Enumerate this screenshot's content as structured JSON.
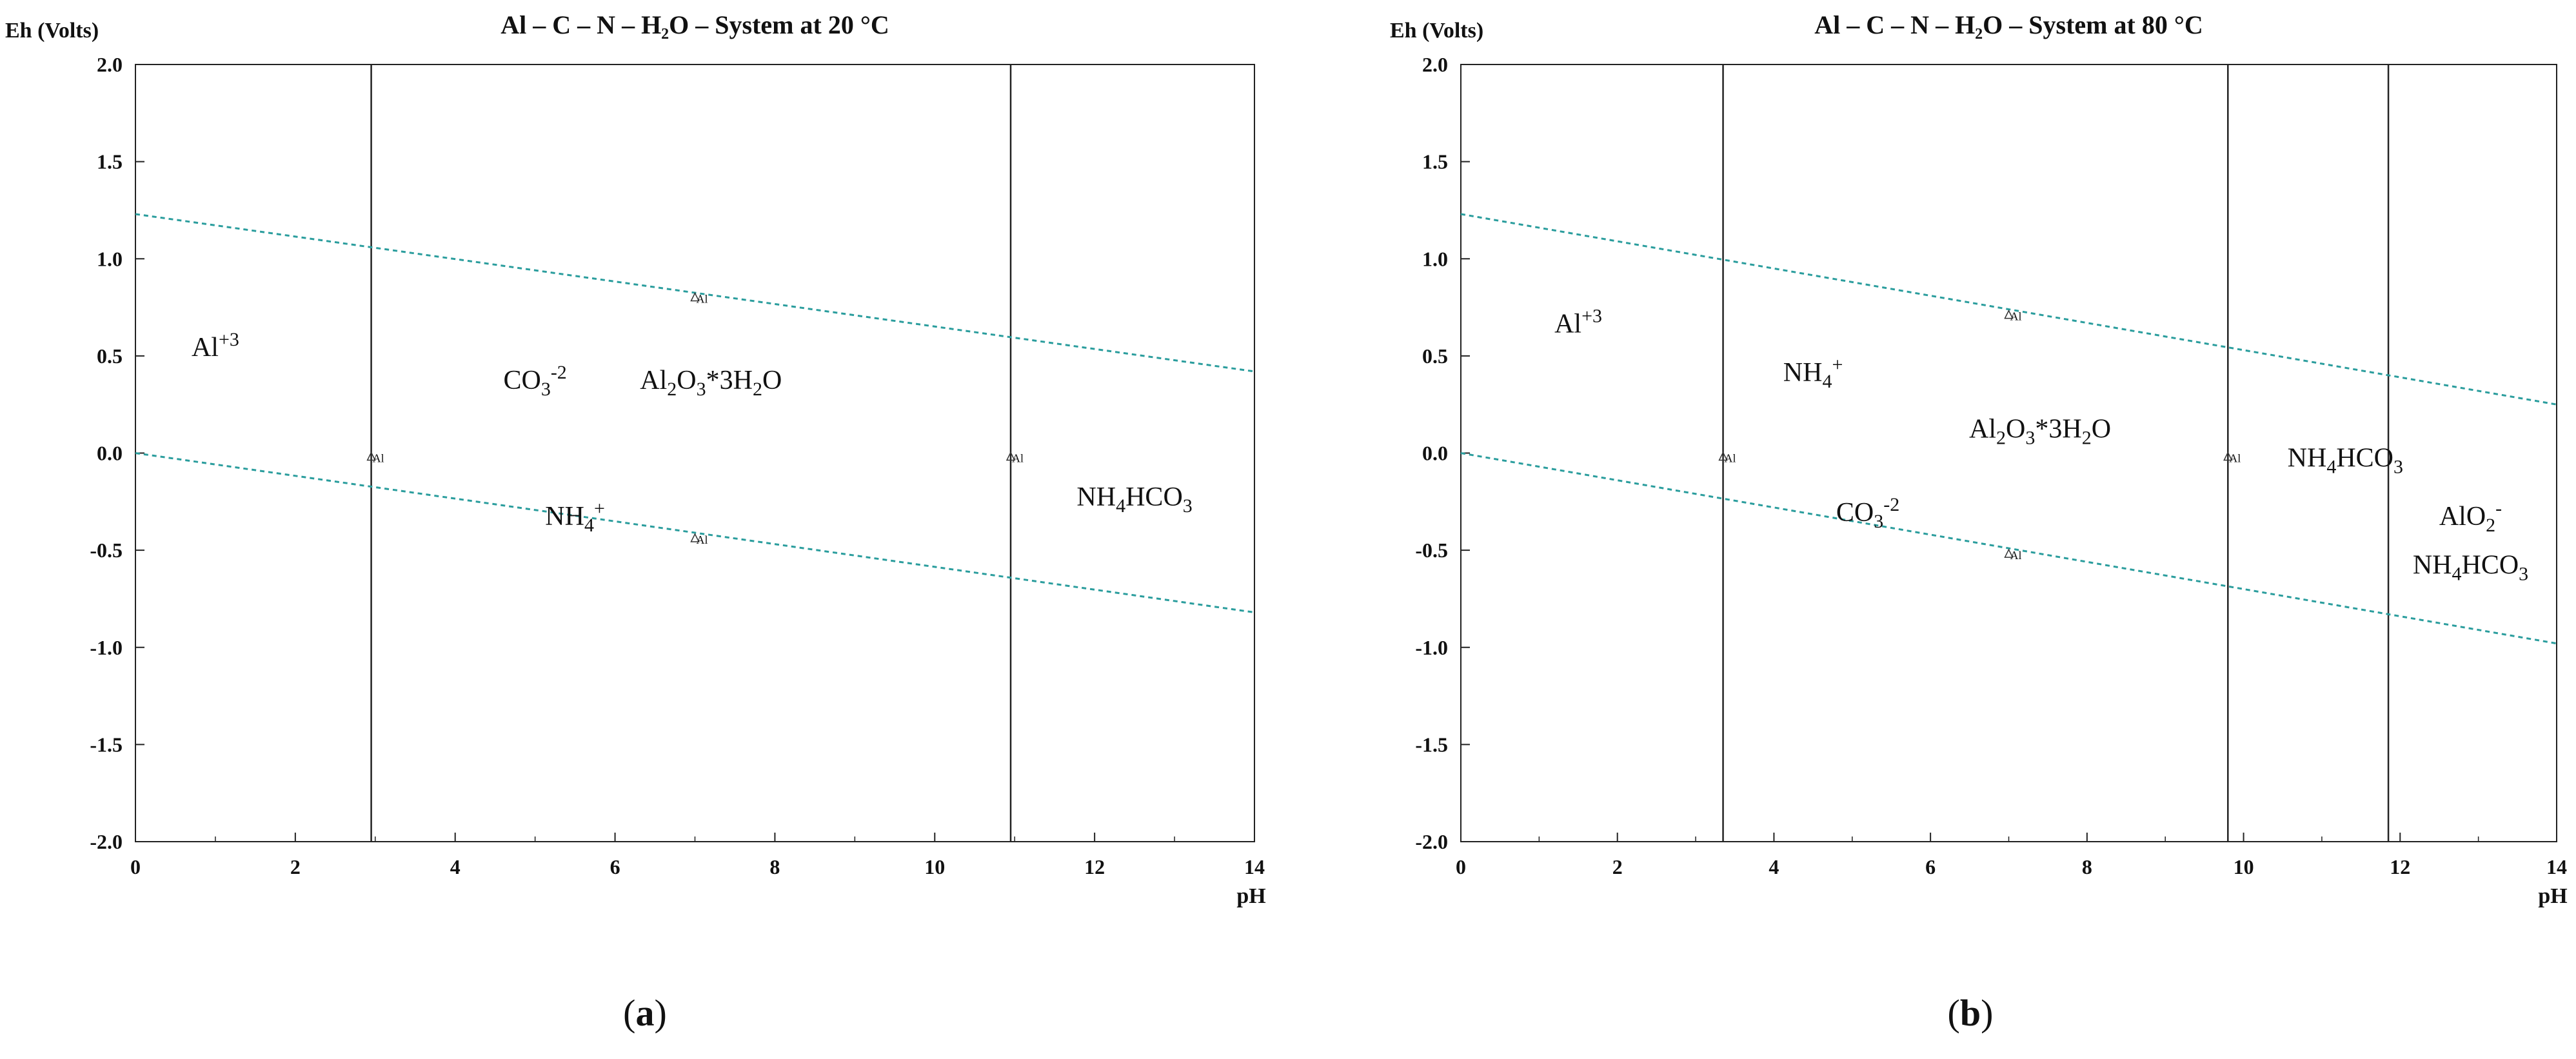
{
  "chart_data": [
    {
      "type": "line",
      "panel_label": "a",
      "title": "Al – C – N – H₂O – System at 20 °C",
      "ylabel": "Eh (Volts)",
      "xlabel": "pH",
      "xlim": [
        0,
        14
      ],
      "ylim": [
        -2.0,
        2.0
      ],
      "xticks": [
        0,
        2,
        4,
        6,
        8,
        10,
        12,
        14
      ],
      "yticks": [
        2.0,
        1.5,
        1.0,
        0.5,
        0.0,
        -0.5,
        -1.0,
        -1.5,
        -2.0
      ],
      "ytick_labels": [
        "2.0",
        "1.5",
        "1.0",
        "0.5",
        "0.0",
        "-0.5",
        "-1.0",
        "-1.5",
        "-2.0"
      ],
      "vertical_boundaries": [
        2.95,
        10.95
      ],
      "water_lines": [
        {
          "style": "dashed",
          "color": "#2a9d9d",
          "x": [
            0,
            14
          ],
          "y": [
            1.23,
            0.42
          ]
        },
        {
          "style": "dashed",
          "color": "#2a9d9d",
          "x": [
            0,
            14
          ],
          "y": [
            0.0,
            -0.82
          ]
        }
      ],
      "markers": [
        {
          "x": 2.95,
          "y": -0.02,
          "label": "Al"
        },
        {
          "x": 7.0,
          "y": 0.8,
          "label": "Al"
        },
        {
          "x": 7.0,
          "y": -0.44,
          "label": "Al"
        },
        {
          "x": 10.95,
          "y": -0.02,
          "label": "Al"
        }
      ],
      "regions": [
        {
          "base": "Al",
          "sup": "+3",
          "x": 1.0,
          "y": 0.5
        },
        {
          "base": "CO",
          "sub": "3",
          "sup": "-2",
          "x": 5.0,
          "y": 0.33
        },
        {
          "parts": [
            [
              "Al",
              ""
            ],
            [
              "2",
              "sub"
            ],
            [
              "O",
              ""
            ],
            [
              "3",
              "sub"
            ],
            [
              "*3H",
              ""
            ],
            [
              "2",
              "sub"
            ],
            [
              "O",
              ""
            ]
          ],
          "x": 7.2,
          "y": 0.33
        },
        {
          "parts": [
            [
              "NH",
              ""
            ],
            [
              "4",
              "sub"
            ],
            [
              "+",
              "sup"
            ]
          ],
          "x": 5.5,
          "y": -0.37
        },
        {
          "parts": [
            [
              "NH",
              ""
            ],
            [
              "4",
              "sub"
            ],
            [
              "HCO",
              ""
            ],
            [
              "3",
              "sub"
            ]
          ],
          "x": 12.5,
          "y": -0.27
        }
      ]
    },
    {
      "type": "line",
      "panel_label": "b",
      "title": "Al – C – N – H₂O – System at 80 °C",
      "ylabel": "Eh (Volts)",
      "xlabel": "pH",
      "xlim": [
        0,
        14
      ],
      "ylim": [
        -2.0,
        2.0
      ],
      "xticks": [
        0,
        2,
        4,
        6,
        8,
        10,
        12,
        14
      ],
      "yticks": [
        2.0,
        1.5,
        1.0,
        0.5,
        0.0,
        -0.5,
        -1.0,
        -1.5,
        -2.0
      ],
      "ytick_labels": [
        "2.0",
        "1.5",
        "1.0",
        "0.5",
        "0.0",
        "-0.5",
        "-1.0",
        "-1.5",
        "-2.0"
      ],
      "vertical_boundaries": [
        3.35,
        9.8,
        11.85
      ],
      "water_lines": [
        {
          "style": "dashed",
          "color": "#2a9d9d",
          "x": [
            0,
            14
          ],
          "y": [
            1.23,
            0.25
          ]
        },
        {
          "style": "dashed",
          "color": "#2a9d9d",
          "x": [
            0,
            14
          ],
          "y": [
            0.0,
            -0.98
          ]
        }
      ],
      "markers": [
        {
          "x": 3.35,
          "y": -0.02,
          "label": "Al"
        },
        {
          "x": 7.0,
          "y": 0.71,
          "label": "Al"
        },
        {
          "x": 7.0,
          "y": -0.52,
          "label": "Al"
        },
        {
          "x": 9.8,
          "y": -0.02,
          "label": "Al"
        }
      ],
      "regions": [
        {
          "base": "Al",
          "sup": "+3",
          "x": 1.5,
          "y": 0.62
        },
        {
          "parts": [
            [
              "NH",
              ""
            ],
            [
              "4",
              "sub"
            ],
            [
              "+",
              "sup"
            ]
          ],
          "x": 4.5,
          "y": 0.37
        },
        {
          "parts": [
            [
              "Al",
              ""
            ],
            [
              "2",
              "sub"
            ],
            [
              "O",
              ""
            ],
            [
              "3",
              "sub"
            ],
            [
              "*3H",
              ""
            ],
            [
              "2",
              "sub"
            ],
            [
              "O",
              ""
            ]
          ],
          "x": 7.4,
          "y": 0.08
        },
        {
          "parts": [
            [
              "NH",
              ""
            ],
            [
              "4",
              "sub"
            ],
            [
              "HCO",
              ""
            ],
            [
              "3",
              "sub"
            ]
          ],
          "x": 11.3,
          "y": -0.07
        },
        {
          "base": "CO",
          "sub": "3",
          "sup": "-2",
          "x": 5.2,
          "y": -0.35
        },
        {
          "parts": [
            [
              "AlO",
              ""
            ],
            [
              "2",
              "sub"
            ],
            [
              "-",
              "sup"
            ]
          ],
          "x": 12.9,
          "y": -0.37
        },
        {
          "parts": [
            [
              "NH",
              ""
            ],
            [
              "4",
              "sub"
            ],
            [
              "HCO",
              ""
            ],
            [
              "3",
              "sub"
            ]
          ],
          "x": 12.9,
          "y": -0.62
        }
      ]
    }
  ]
}
